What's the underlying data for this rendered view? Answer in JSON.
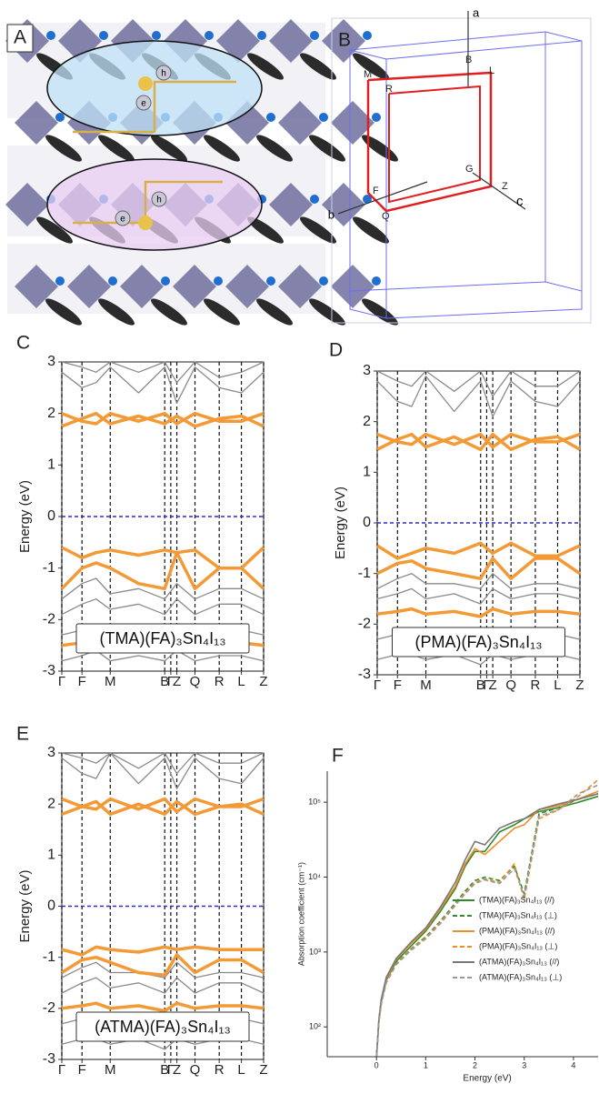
{
  "panel_labels": [
    "A",
    "B",
    "C",
    "D",
    "E",
    "F"
  ],
  "diagrams": {
    "A": {
      "carriers": [
        "h",
        "e",
        "h",
        "e"
      ]
    },
    "B": {
      "axes": [
        "a",
        "b",
        "c"
      ],
      "points": [
        "M",
        "B",
        "L",
        "R",
        "G",
        "Z",
        "F",
        "Q"
      ]
    }
  },
  "chart_data": [
    {
      "type": "line",
      "ylabel": "Energy (eV)",
      "annotation": "(TMA)(FA)₃Sn₄I₁₃",
      "xlim": [
        0,
        1
      ],
      "ylim": [
        -3,
        3
      ],
      "yticks": [
        -3,
        -2,
        -1,
        0,
        1,
        2,
        3
      ],
      "xticks": [
        {
          "value": 0,
          "label": "Γ"
        },
        {
          "value": 0.1,
          "label": "F"
        },
        {
          "value": 0.24,
          "label": "M"
        },
        {
          "value": 0.51,
          "label": "B"
        },
        {
          "value": 0.54,
          "label": "Γ"
        },
        {
          "value": 0.57,
          "label": "Z"
        },
        {
          "value": 0.66,
          "label": "Q"
        },
        {
          "value": 0.78,
          "label": "R"
        },
        {
          "value": 0.89,
          "label": "L"
        },
        {
          "value": 1,
          "label": "Z"
        }
      ],
      "xgrid": true,
      "hline": 0,
      "hline_color": "#2a2ad0",
      "x": [
        0,
        0.1,
        0.17,
        0.24,
        0.38,
        0.51,
        0.57,
        0.66,
        0.78,
        0.89,
        1
      ],
      "series": [
        {
          "color": "#8a8a8a",
          "values": [
            2.8,
            2.5,
            2.6,
            2.9,
            2.4,
            2.9,
            2.2,
            2.9,
            2.5,
            2.4,
            2.8
          ]
        },
        {
          "color": "#8a8a8a",
          "values": [
            3.0,
            2.9,
            2.8,
            3.0,
            2.8,
            3.0,
            2.6,
            3.0,
            2.7,
            2.8,
            3.0
          ]
        },
        {
          "color": "#8a8a8a",
          "values": [
            -1.6,
            -1.3,
            -1.2,
            -1.5,
            -1.4,
            -1.6,
            -1.3,
            -1.6,
            -1.4,
            -1.4,
            -1.6
          ]
        },
        {
          "color": "#8a8a8a",
          "values": [
            -1.9,
            -1.7,
            -1.6,
            -1.8,
            -1.7,
            -1.9,
            -1.6,
            -1.9,
            -1.7,
            -1.7,
            -1.9
          ]
        },
        {
          "color": "#8a8a8a",
          "values": [
            -2.3,
            -2.2,
            -2.1,
            -2.3,
            -2.2,
            -2.4,
            -2.1,
            -2.3,
            -2.2,
            -2.2,
            -2.3
          ]
        },
        {
          "color": "#8a8a8a",
          "values": [
            -2.8,
            -2.7,
            -2.6,
            -2.8,
            -2.7,
            -2.8,
            -2.6,
            -2.8,
            -2.7,
            -2.7,
            -2.8
          ]
        },
        {
          "color": "#f39a37",
          "values": [
            1.75,
            1.9,
            2.0,
            1.8,
            1.95,
            1.8,
            1.95,
            1.75,
            1.9,
            1.95,
            1.75
          ]
        },
        {
          "color": "#f39a37",
          "values": [
            2.0,
            1.85,
            1.8,
            2.0,
            1.85,
            2.0,
            1.8,
            2.0,
            1.85,
            1.85,
            2.0
          ]
        },
        {
          "color": "#f39a37",
          "values": [
            -0.6,
            -0.8,
            -0.7,
            -0.65,
            -0.75,
            -0.65,
            -0.7,
            -0.65,
            -1.0,
            -1.0,
            -0.6
          ]
        },
        {
          "color": "#f39a37",
          "values": [
            -1.4,
            -1.0,
            -0.9,
            -1.0,
            -1.3,
            -1.4,
            -0.7,
            -1.4,
            -1.0,
            -1.0,
            -1.4
          ]
        },
        {
          "color": "#f39a37",
          "values": [
            -2.5,
            -2.45,
            -2.4,
            -2.5,
            -2.45,
            -2.55,
            -2.4,
            -2.5,
            -2.45,
            -2.45,
            -2.5
          ]
        }
      ]
    },
    {
      "type": "line",
      "ylabel": "Energy (eV)",
      "annotation": "(PMA)(FA)₃Sn₄I₁₃",
      "xlim": [
        0,
        1
      ],
      "ylim": [
        -3,
        3
      ],
      "yticks": [
        -3,
        -2,
        -1,
        0,
        1,
        2,
        3
      ],
      "xticks": [
        {
          "value": 0,
          "label": "Γ"
        },
        {
          "value": 0.1,
          "label": "F"
        },
        {
          "value": 0.24,
          "label": "M"
        },
        {
          "value": 0.51,
          "label": "B"
        },
        {
          "value": 0.54,
          "label": "Γ"
        },
        {
          "value": 0.57,
          "label": "Z"
        },
        {
          "value": 0.66,
          "label": "Q"
        },
        {
          "value": 0.78,
          "label": "R"
        },
        {
          "value": 0.89,
          "label": "L"
        },
        {
          "value": 1,
          "label": "Z"
        }
      ],
      "xgrid": true,
      "hline": 0,
      "hline_color": "#2a2ad0",
      "x": [
        0,
        0.1,
        0.17,
        0.24,
        0.38,
        0.51,
        0.57,
        0.66,
        0.78,
        0.89,
        1
      ],
      "series": [
        {
          "color": "#8a8a8a",
          "values": [
            2.8,
            2.4,
            2.3,
            2.9,
            2.2,
            2.8,
            2.1,
            2.8,
            2.4,
            2.3,
            2.8
          ]
        },
        {
          "color": "#8a8a8a",
          "values": [
            3.0,
            2.8,
            2.7,
            3.0,
            2.6,
            3.0,
            2.5,
            3.0,
            2.7,
            2.7,
            3.0
          ]
        },
        {
          "color": "#8a8a8a",
          "values": [
            -1.3,
            -1.1,
            -1.0,
            -1.2,
            -1.2,
            -1.3,
            -1.0,
            -1.3,
            -1.2,
            -1.2,
            -1.3
          ]
        },
        {
          "color": "#8a8a8a",
          "values": [
            -1.5,
            -1.4,
            -1.3,
            -1.5,
            -1.4,
            -1.6,
            -1.3,
            -1.5,
            -1.4,
            -1.4,
            -1.5
          ]
        },
        {
          "color": "#8a8a8a",
          "values": [
            -2.3,
            -2.2,
            -2.1,
            -2.3,
            -2.2,
            -2.4,
            -2.1,
            -2.3,
            -2.2,
            -2.2,
            -2.3
          ]
        },
        {
          "color": "#8a8a8a",
          "values": [
            -2.7,
            -2.6,
            -2.6,
            -2.7,
            -2.6,
            -2.8,
            -2.6,
            -2.7,
            -2.6,
            -2.6,
            -2.7
          ]
        },
        {
          "color": "#f39a37",
          "values": [
            1.45,
            1.65,
            1.75,
            1.5,
            1.7,
            1.45,
            1.75,
            1.45,
            1.65,
            1.7,
            1.45
          ]
        },
        {
          "color": "#f39a37",
          "values": [
            1.75,
            1.6,
            1.55,
            1.75,
            1.55,
            1.75,
            1.5,
            1.75,
            1.6,
            1.6,
            1.75
          ]
        },
        {
          "color": "#f39a37",
          "values": [
            -0.45,
            -0.7,
            -0.6,
            -0.5,
            -0.6,
            -0.4,
            -0.6,
            -0.4,
            -0.65,
            -0.65,
            -0.45
          ]
        },
        {
          "color": "#f39a37",
          "values": [
            -1.0,
            -0.8,
            -0.75,
            -0.9,
            -1.0,
            -1.1,
            -0.7,
            -1.1,
            -0.7,
            -0.7,
            -1.0
          ]
        },
        {
          "color": "#f39a37",
          "values": [
            -1.8,
            -1.75,
            -1.7,
            -1.8,
            -1.75,
            -1.85,
            -1.7,
            -1.8,
            -1.75,
            -1.75,
            -1.8
          ]
        }
      ]
    },
    {
      "type": "line",
      "ylabel": "Energy (eV)",
      "annotation": "(ATMA)(FA)₃Sn₄I₁₃",
      "xlim": [
        0,
        1
      ],
      "ylim": [
        -3,
        3
      ],
      "yticks": [
        -3,
        -2,
        -1,
        0,
        1,
        2,
        3
      ],
      "xticks": [
        {
          "value": 0,
          "label": "Γ"
        },
        {
          "value": 0.1,
          "label": "F"
        },
        {
          "value": 0.24,
          "label": "M"
        },
        {
          "value": 0.51,
          "label": "B"
        },
        {
          "value": 0.54,
          "label": "Γ"
        },
        {
          "value": 0.57,
          "label": "Z"
        },
        {
          "value": 0.66,
          "label": "Q"
        },
        {
          "value": 0.78,
          "label": "R"
        },
        {
          "value": 0.89,
          "label": "L"
        },
        {
          "value": 1,
          "label": "Z"
        }
      ],
      "xgrid": true,
      "hline": 0,
      "hline_color": "#2a2ad0",
      "x": [
        0,
        0.1,
        0.17,
        0.24,
        0.38,
        0.51,
        0.57,
        0.66,
        0.78,
        0.89,
        1
      ],
      "series": [
        {
          "color": "#8a8a8a",
          "values": [
            2.9,
            2.6,
            2.5,
            3.0,
            2.4,
            2.9,
            2.3,
            2.9,
            2.5,
            2.4,
            2.9
          ]
        },
        {
          "color": "#8a8a8a",
          "values": [
            3.0,
            2.9,
            2.8,
            3.0,
            2.7,
            3.0,
            2.6,
            3.0,
            2.8,
            2.8,
            3.0
          ]
        },
        {
          "color": "#8a8a8a",
          "values": [
            -1.4,
            -1.2,
            -1.1,
            -1.3,
            -1.3,
            -1.4,
            -1.1,
            -1.4,
            -1.3,
            -1.3,
            -1.4
          ]
        },
        {
          "color": "#8a8a8a",
          "values": [
            -1.7,
            -1.5,
            -1.4,
            -1.6,
            -1.5,
            -1.7,
            -1.4,
            -1.7,
            -1.5,
            -1.5,
            -1.7
          ]
        },
        {
          "color": "#8a8a8a",
          "values": [
            -2.3,
            -2.2,
            -2.2,
            -2.3,
            -2.2,
            -2.4,
            -2.2,
            -2.3,
            -2.2,
            -2.2,
            -2.3
          ]
        },
        {
          "color": "#8a8a8a",
          "values": [
            -2.7,
            -2.6,
            -2.6,
            -2.7,
            -2.6,
            -2.8,
            -2.6,
            -2.7,
            -2.6,
            -2.6,
            -2.7
          ]
        },
        {
          "color": "#f39a37",
          "values": [
            1.8,
            1.95,
            2.05,
            1.8,
            2.0,
            1.8,
            2.05,
            1.8,
            1.95,
            2.0,
            1.8
          ]
        },
        {
          "color": "#f39a37",
          "values": [
            2.1,
            1.95,
            1.9,
            2.1,
            1.9,
            2.1,
            1.85,
            2.1,
            1.95,
            1.95,
            2.1
          ]
        },
        {
          "color": "#f39a37",
          "values": [
            -0.85,
            -0.95,
            -0.8,
            -0.85,
            -0.9,
            -0.8,
            -0.85,
            -0.8,
            -0.85,
            -0.85,
            -0.85
          ]
        },
        {
          "color": "#f39a37",
          "values": [
            -1.3,
            -1.05,
            -1.0,
            -1.1,
            -1.3,
            -1.35,
            -0.95,
            -1.3,
            -1.05,
            -1.05,
            -1.3
          ]
        },
        {
          "color": "#f39a37",
          "values": [
            -2.0,
            -1.95,
            -1.9,
            -2.0,
            -1.95,
            -2.05,
            -1.9,
            -2.0,
            -1.95,
            -1.95,
            -2.0
          ]
        }
      ]
    },
    {
      "type": "line",
      "log_y": true,
      "xlabel": "Energy (eV)",
      "ylabel": "Absorption coefficient (cm⁻¹)",
      "xlim": [
        -1,
        4.5
      ],
      "xticks": [
        0,
        1,
        2,
        3,
        4
      ],
      "ylim": [
        40,
        260000
      ],
      "yticks": [
        {
          "value": 100,
          "label": "10²"
        },
        {
          "value": 1000,
          "label": "10³"
        },
        {
          "value": 10000,
          "label": "10⁴"
        },
        {
          "value": 100000,
          "label": "10⁵"
        }
      ],
      "legend": "lower right",
      "x": [
        0,
        0.05,
        0.1,
        0.2,
        0.4,
        0.7,
        1.0,
        1.3,
        1.6,
        1.8,
        2.0,
        2.2,
        2.5,
        2.8,
        3.0,
        3.3,
        3.7,
        4.1,
        4.5
      ],
      "series": [
        {
          "name": "(TMA)(FA)₃Sn₄I₁₃ (//)",
          "color": "#2e8b2e",
          "linestyle": "solid",
          "values": [
            40,
            120,
            220,
            420,
            750,
            1200,
            1900,
            3500,
            7000,
            14000,
            22000,
            22000,
            40000,
            50000,
            60000,
            75000,
            85000,
            100000,
            120000
          ]
        },
        {
          "name": "(TMA)(FA)₃Sn₄I₁₃ (⊥)",
          "color": "#2e8b2e",
          "linestyle": "dashed",
          "values": [
            40,
            120,
            210,
            400,
            700,
            1100,
            1600,
            2600,
            4500,
            6500,
            9000,
            10000,
            9000,
            14000,
            6000,
            70000,
            85000,
            110000,
            130000
          ]
        },
        {
          "name": "(PMA)(FA)₃Sn₄I₁₃ (//)",
          "color": "#f08a24",
          "linestyle": "solid",
          "values": [
            40,
            125,
            230,
            440,
            800,
            1300,
            2000,
            3800,
            7500,
            15000,
            24000,
            20000,
            30000,
            45000,
            50000,
            80000,
            90000,
            110000,
            140000
          ]
        },
        {
          "name": "(PMA)(FA)₃Sn₄I₁₃ (⊥)",
          "color": "#f08a24",
          "linestyle": "dashed",
          "values": [
            40,
            120,
            210,
            400,
            690,
            1080,
            1550,
            2500,
            4300,
            6200,
            8500,
            9500,
            8500,
            15000,
            5000,
            60000,
            80000,
            120000,
            200000
          ]
        },
        {
          "name": "(ATMA)(FA)₃Sn₄I₁₃ (//)",
          "color": "#777777",
          "linestyle": "solid",
          "values": [
            40,
            130,
            240,
            460,
            820,
            1350,
            2100,
            4000,
            8500,
            17000,
            30000,
            27000,
            45000,
            55000,
            60000,
            80000,
            95000,
            110000,
            130000
          ]
        },
        {
          "name": "(ATMA)(FA)₃Sn₄I₁₃ (⊥)",
          "color": "#999999",
          "linestyle": "dashed",
          "values": [
            40,
            118,
            205,
            390,
            680,
            1050,
            1500,
            2400,
            4200,
            6000,
            8200,
            9200,
            8200,
            13000,
            5500,
            65000,
            80000,
            130000,
            170000
          ]
        }
      ]
    }
  ]
}
